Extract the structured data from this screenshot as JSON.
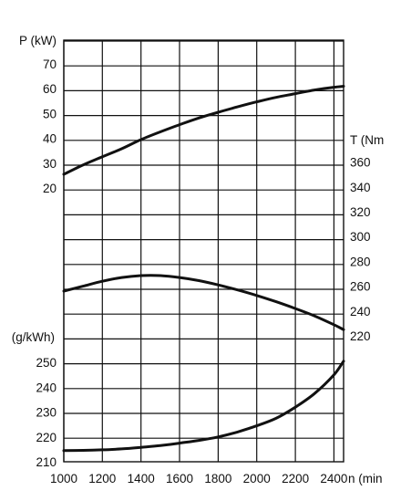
{
  "chart_data": {
    "type": "line",
    "title": "",
    "grid": true,
    "x": {
      "label": "n (min",
      "range": [
        1000,
        2450
      ],
      "ticks": [
        1000,
        1200,
        1400,
        1600,
        1800,
        2000,
        2200,
        2400
      ]
    },
    "axes": {
      "power": {
        "label": "P (kW)",
        "side": "left",
        "range": [
          20,
          70
        ],
        "ticks": [
          20,
          30,
          40,
          50,
          60,
          70
        ]
      },
      "torque": {
        "label": "T (Nm",
        "side": "right",
        "range": [
          220,
          360
        ],
        "ticks": [
          220,
          240,
          260,
          280,
          300,
          320,
          340,
          360
        ]
      },
      "consumption": {
        "label": "(g/kWh)",
        "side": "left",
        "range": [
          210,
          250
        ],
        "ticks": [
          210,
          220,
          230,
          240,
          250
        ]
      }
    },
    "series": [
      {
        "axis": "power",
        "x": [
          1000,
          1100,
          1200,
          1300,
          1400,
          1500,
          1600,
          1700,
          1800,
          1900,
          2000,
          2100,
          2200,
          2300,
          2400,
          2450
        ],
        "y": [
          25.5,
          29.3,
          32.6,
          35.8,
          39.5,
          42.6,
          45.5,
          48.2,
          50.5,
          52.7,
          54.7,
          56.5,
          58.0,
          59.5,
          60.6,
          61.0
        ]
      },
      {
        "axis": "torque",
        "x": [
          1000,
          1100,
          1200,
          1300,
          1400,
          1500,
          1600,
          1700,
          1800,
          1900,
          2000,
          2100,
          2200,
          2300,
          2400,
          2450
        ],
        "y": [
          256,
          260,
          264,
          267,
          268.5,
          268.5,
          267,
          264.5,
          261,
          257,
          252.5,
          247.5,
          242,
          236,
          229,
          225
        ]
      },
      {
        "axis": "consumption",
        "x": [
          1000,
          1100,
          1200,
          1300,
          1400,
          1500,
          1600,
          1700,
          1800,
          1900,
          2000,
          2100,
          2200,
          2300,
          2400,
          2450
        ],
        "y": [
          214.5,
          214.6,
          214.8,
          215.2,
          215.8,
          216.5,
          217.5,
          218.6,
          220.0,
          222.0,
          224.5,
          227.5,
          232.0,
          237.5,
          245.0,
          250.5
        ]
      }
    ]
  }
}
